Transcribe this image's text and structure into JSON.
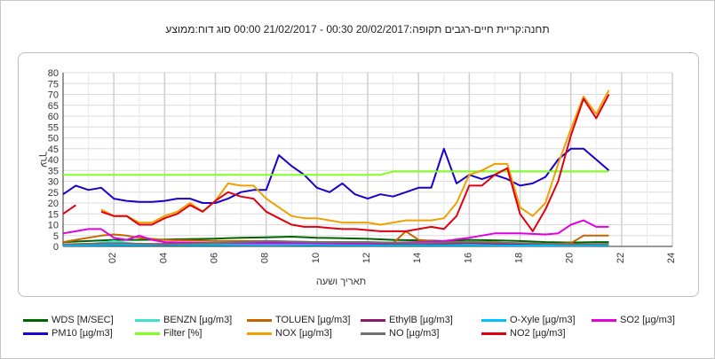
{
  "header": {
    "title": "תחנה:קריית חיים-רגבים  תקופה:20/02/2017 00:30 - 21/02/2017 00:00 סוג דוח:ממוצע"
  },
  "chart_data": {
    "type": "line",
    "ylabel": "ערך",
    "xlabel": "תאריך ושעה",
    "ylim": [
      0,
      80
    ],
    "xlim": [
      0,
      24
    ],
    "yticks": [
      "0",
      "5",
      "10",
      "15",
      "20",
      "25",
      "30",
      "35",
      "40",
      "45",
      "50",
      "55",
      "60",
      "65",
      "70",
      "75",
      "80"
    ],
    "xticks": [
      "02",
      "04",
      "06",
      "08",
      "10",
      "12",
      "14",
      "16",
      "18",
      "20",
      "22",
      "24"
    ],
    "grid": true,
    "legend_position": "bottom",
    "series": [
      {
        "name": "WDS [M/SEC]",
        "color": "#006400",
        "x": [
          0,
          1,
          2,
          3,
          4,
          5,
          6,
          7,
          8,
          9,
          10,
          11,
          12,
          13,
          14,
          15,
          16,
          17,
          18,
          19,
          20,
          21,
          21.5
        ],
        "y": [
          2,
          2.5,
          3,
          3,
          3.2,
          3.4,
          3.6,
          4,
          4.2,
          4.5,
          4,
          3.8,
          3.5,
          3,
          2.8,
          2.5,
          3,
          2.8,
          2.5,
          2,
          1.8,
          2,
          2
        ]
      },
      {
        "name": "BENZN [µg/m3]",
        "color": "#40e0d0",
        "x": [
          0,
          1,
          2,
          3,
          4,
          6,
          8,
          10,
          12,
          14,
          16,
          18,
          20,
          21.5
        ],
        "y": [
          0.5,
          1,
          2.5,
          1,
          0.8,
          0.8,
          0.8,
          0.9,
          0.9,
          0.8,
          0.7,
          0.6,
          0.5,
          0.6
        ]
      },
      {
        "name": "TOLUEN [µg/m3]",
        "color": "#c86400",
        "x": [
          0,
          0.5,
          1,
          1.5,
          2,
          2.5,
          3,
          4,
          6,
          8,
          10,
          12,
          13,
          13.5,
          14,
          15,
          16,
          17,
          18,
          19,
          20,
          20.5,
          21,
          21.5
        ],
        "y": [
          2,
          3,
          4,
          5,
          5.5,
          5,
          4,
          3,
          2.5,
          2.5,
          2,
          2,
          1.5,
          7,
          3,
          2,
          2,
          2,
          1,
          1,
          1.5,
          5,
          5,
          5
        ]
      },
      {
        "name": "EthylB [µg/m3]",
        "color": "#8b1a6b",
        "x": [
          0,
          2,
          4,
          6,
          8,
          10,
          12,
          14,
          16,
          18,
          20,
          21.5
        ],
        "y": [
          1,
          1,
          1.2,
          1.5,
          2,
          1.5,
          1,
          1,
          1.5,
          1,
          0.8,
          1
        ]
      },
      {
        "name": "O-Xyle [µg/m3]",
        "color": "#00bfff",
        "x": [
          0,
          2,
          4,
          6,
          8,
          10,
          12,
          14,
          16,
          18,
          20,
          21.5
        ],
        "y": [
          0.4,
          0.6,
          0.6,
          0.6,
          0.7,
          0.6,
          0.5,
          0.5,
          0.5,
          0.4,
          0.4,
          0.5
        ]
      },
      {
        "name": "SO2 [µg/m3]",
        "color": "#e000e0",
        "x": [
          0,
          0.5,
          1,
          1.5,
          2,
          2.5,
          3,
          3.5,
          4,
          6,
          8,
          10,
          12,
          14,
          15,
          16,
          17,
          18,
          19,
          19.5,
          20,
          20.5,
          21,
          21.5
        ],
        "y": [
          6,
          7,
          8,
          8,
          4,
          3,
          5,
          3,
          2,
          1.5,
          1.5,
          1.5,
          1.5,
          2,
          2.5,
          4,
          6,
          6,
          5.5,
          6,
          10,
          12,
          9,
          9
        ]
      },
      {
        "name": "PM10 [µg/m3]",
        "color": "#1a00c8",
        "x": [
          0,
          0.5,
          1,
          1.5,
          2,
          2.5,
          3,
          3.5,
          4,
          4.5,
          5,
          5.5,
          6,
          6.5,
          7,
          7.5,
          8,
          8.5,
          9,
          9.5,
          10,
          10.5,
          11,
          11.5,
          12,
          12.5,
          13,
          13.5,
          14,
          14.5,
          15,
          15.5,
          16,
          16.5,
          17,
          17.5,
          18,
          18.5,
          19,
          19.5,
          20,
          20.5,
          21,
          21.5
        ],
        "y": [
          24,
          28,
          26,
          27,
          22,
          21,
          20.5,
          20.5,
          21,
          22,
          22,
          20,
          20,
          22,
          25,
          26,
          26,
          42,
          37,
          33,
          27,
          25,
          29,
          24,
          22,
          24,
          23,
          25,
          27,
          27,
          45,
          29,
          33,
          31,
          33,
          31,
          28,
          29,
          32,
          40,
          45,
          45,
          40,
          35
        ]
      },
      {
        "name": "Filter [%]",
        "color": "#80ff20",
        "x": [
          0,
          12.5,
          13,
          21.5
        ],
        "y": [
          33,
          33,
          34.5,
          34.5
        ]
      },
      {
        "name": "NOX [µg/m3]",
        "color": "#f0a000",
        "x": [
          1.5,
          2,
          2.5,
          3,
          3.5,
          4,
          4.5,
          5,
          5.5,
          6,
          6.5,
          7,
          7.5,
          8,
          8.5,
          9,
          9.5,
          10,
          10.5,
          11,
          11.5,
          12,
          12.5,
          13,
          13.5,
          14,
          14.5,
          15,
          15.5,
          16,
          16.5,
          17,
          17.5,
          18,
          18.5,
          19,
          19.5,
          20,
          20.5,
          21,
          21.5
        ],
        "y": [
          17,
          14,
          14,
          11,
          11,
          14,
          16,
          20,
          16,
          21,
          29,
          28,
          28,
          22,
          18,
          14,
          13,
          13,
          12,
          11,
          11,
          11,
          10,
          11,
          12,
          12,
          12,
          13,
          20,
          33,
          35,
          38,
          38,
          18,
          14,
          20,
          38,
          54,
          69,
          61,
          72
        ]
      },
      {
        "name": "NO [µg/m3]",
        "color": "#707070",
        "x": [
          0,
          2,
          4,
          6,
          8,
          10,
          12,
          14,
          16,
          18,
          20,
          21.5
        ],
        "y": [
          1,
          1.5,
          1,
          1.5,
          2.5,
          2,
          2,
          1.5,
          2,
          1.5,
          1,
          1.2
        ]
      },
      {
        "name": "NO2 [µg/m3]",
        "color": "#e00010",
        "x": [
          0,
          0.5,
          null,
          1.5,
          2,
          2.5,
          3,
          3.5,
          4,
          4.5,
          5,
          5.5,
          6,
          6.5,
          7,
          7.5,
          8,
          8.5,
          9,
          9.5,
          10,
          10.5,
          11,
          11.5,
          12,
          12.5,
          13,
          13.5,
          14,
          14.5,
          15,
          15.5,
          16,
          16.5,
          17,
          17.5,
          18,
          18.5,
          19,
          19.5,
          20,
          20.5,
          21,
          21.5
        ],
        "y": [
          15,
          19,
          null,
          16,
          14,
          14,
          10,
          10,
          13,
          15,
          19,
          16,
          21,
          25,
          23,
          22,
          16,
          13,
          10,
          9,
          9,
          8.5,
          8,
          8,
          7.5,
          7,
          7,
          7,
          8,
          9,
          8,
          14,
          28,
          28,
          33,
          36,
          15,
          7,
          17,
          30,
          51,
          68,
          59,
          70
        ]
      }
    ]
  }
}
